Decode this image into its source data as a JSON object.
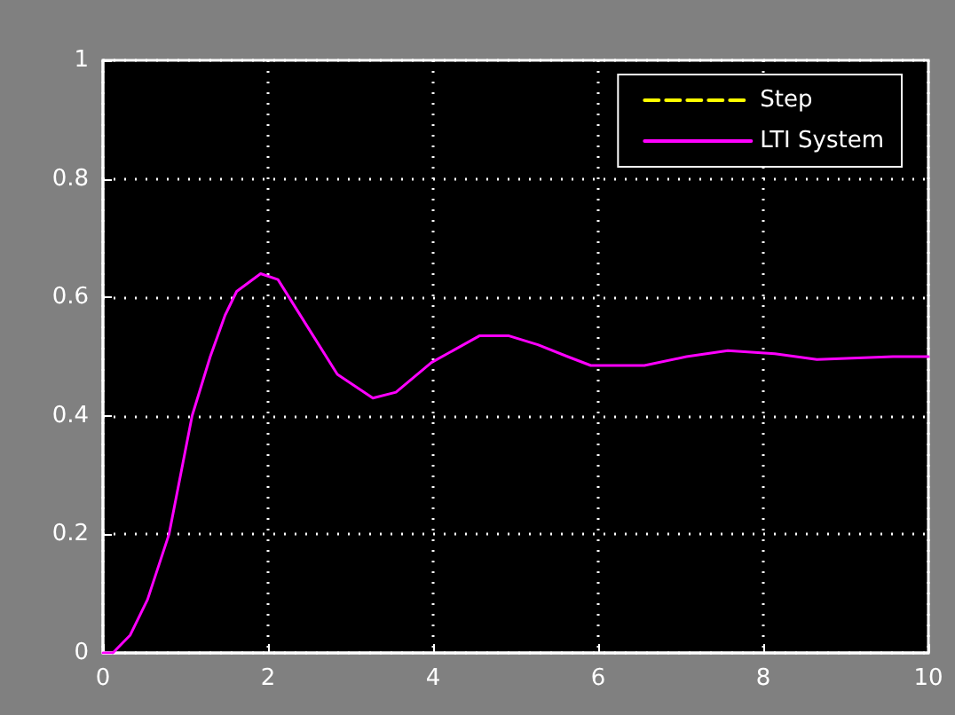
{
  "chart_data": {
    "type": "line",
    "xlim": [
      0,
      10
    ],
    "xticks": [
      0,
      2,
      4,
      6,
      8,
      10
    ],
    "ylim": [
      0,
      1
    ],
    "yticks": [
      0,
      0.2,
      0.4,
      0.6,
      0.8,
      1
    ],
    "grid": true,
    "legend": "top right",
    "marker": "none",
    "series": [
      {
        "name": "Step",
        "color": "#ffff00",
        "line_style": "dashed"
      },
      {
        "name": "LTI System",
        "color": "#ff00ff",
        "line_style": "solid",
        "x": [
          0,
          0.12,
          0.33,
          0.54,
          0.8,
          1.08,
          1.3,
          1.48,
          1.62,
          1.91,
          2.12,
          2.48,
          2.84,
          3.27,
          3.55,
          3.98,
          4.56,
          4.92,
          5.27,
          5.63,
          5.91,
          6.56,
          7.07,
          7.57,
          8.14,
          8.65,
          9.57,
          10
        ],
        "values": [
          0,
          0,
          0.03,
          0.09,
          0.2,
          0.4,
          0.5,
          0.57,
          0.61,
          0.64,
          0.63,
          0.55,
          0.47,
          0.43,
          0.44,
          0.49,
          0.535,
          0.535,
          0.52,
          0.5,
          0.485,
          0.485,
          0.5,
          0.51,
          0.505,
          0.495,
          0.5,
          0.5
        ]
      }
    ]
  }
}
